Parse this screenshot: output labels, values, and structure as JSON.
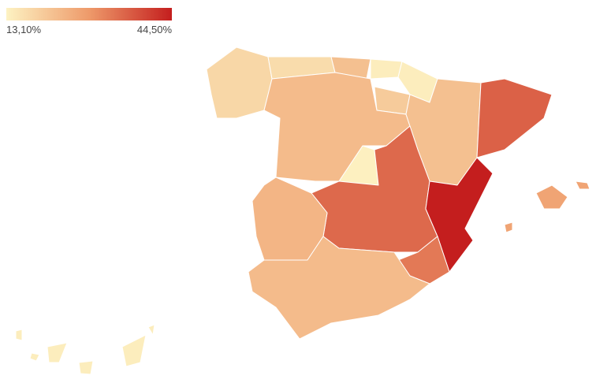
{
  "chart_data": {
    "type": "choropleth",
    "scale": {
      "min": {
        "value": 13.1,
        "label": "13,10%"
      },
      "max": {
        "value": 44.5,
        "label": "44,50%"
      }
    },
    "colors": [
      "#fdf2c2",
      "#ee9a6a",
      "#c41e1e"
    ],
    "values": [
      18,
      17,
      22,
      14,
      14,
      20,
      23,
      13.5,
      22,
      36,
      35,
      44.5,
      33,
      24,
      23,
      27,
      14
    ]
  }
}
